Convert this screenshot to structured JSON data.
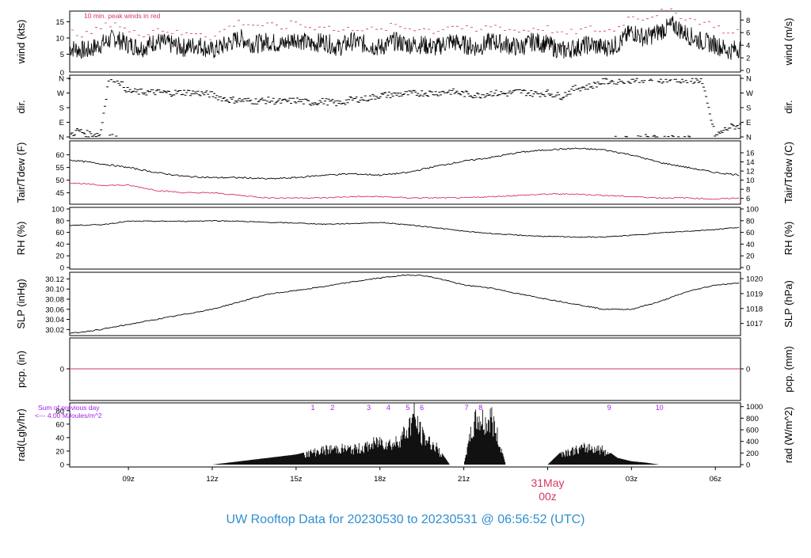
{
  "title": "UW Rooftop Data for 20230530  to  20230531 @ 06:56:52  (UTC)",
  "colors": {
    "accent_red": "#d6375c",
    "purple": "#a020f0",
    "title_blue": "#2e8fd1",
    "ink": "#000000"
  },
  "x_ticks": [
    "09z",
    "12z",
    "15z",
    "18z",
    "21z",
    "03z",
    "06z"
  ],
  "date_label": {
    "day": "31May",
    "hour": "00z"
  },
  "panels": {
    "wind": {
      "ylabel_left": "wind (kts)",
      "ylabel_right": "wind (m/s)",
      "note": "10 min. peak winds in red",
      "left_ticks": [
        "5",
        "10",
        "15"
      ],
      "left_zero": "0",
      "right_ticks": [
        "0",
        "2",
        "4",
        "6",
        "8"
      ]
    },
    "dir": {
      "ylabel_left": "dir.",
      "ylabel_right": "dir.",
      "ticks": [
        "N",
        "E",
        "S",
        "W",
        "N"
      ]
    },
    "temp": {
      "ylabel_left": "Tair/Tdew (F)",
      "ylabel_right": "Tair/Tdew (C)",
      "left_ticks": [
        "45",
        "50",
        "55",
        "60"
      ],
      "right_ticks": [
        "6",
        "8",
        "10",
        "12",
        "14",
        "16"
      ]
    },
    "rh": {
      "ylabel_left": "RH (%)",
      "ylabel_right": "RH (%)",
      "ticks": [
        "0",
        "20",
        "40",
        "60",
        "80",
        "100"
      ]
    },
    "slp": {
      "ylabel_left": "SLP (inHg)",
      "ylabel_right": "SLP (hPa)",
      "left_ticks": [
        "30.02",
        "30.04",
        "30.06",
        "30.08",
        "30.10",
        "30.12"
      ],
      "right_ticks": [
        "1017",
        "1018",
        "1019",
        "1020"
      ]
    },
    "pcp": {
      "ylabel_left": "pcp. (in)",
      "ylabel_right": "pcp. (mm)",
      "left_tick": "0",
      "right_tick": "0"
    },
    "rad": {
      "ylabel_left": "rad(Lgly/hr)",
      "ylabel_right": "rad (W/m^2)",
      "left_ticks": [
        "0",
        "20",
        "40",
        "60",
        "80"
      ],
      "right_ticks": [
        "0",
        "200",
        "400",
        "600",
        "800",
        "1000"
      ],
      "sum_label": "Sum of previous day",
      "sum_value": "<--- 4.00 MJoules/m^2",
      "markers": [
        "1",
        "2",
        "3",
        "4",
        "5",
        "6",
        "7",
        "8",
        "9",
        "10"
      ]
    }
  },
  "chart_data": {
    "type": "line",
    "x_range_hours_utc": [
      6.9,
      30.9
    ],
    "wind": {
      "x": [
        6.9,
        7.5,
        8.0,
        8.5,
        9.0,
        9.5,
        10.0,
        10.5,
        11.0,
        11.5,
        12.0,
        12.5,
        13.0,
        13.5,
        14.0,
        14.5,
        15.0,
        15.5,
        16.0,
        16.5,
        17.0,
        17.5,
        18.0,
        18.5,
        19.0,
        19.5,
        20.0,
        20.5,
        21.0,
        21.5,
        22.0,
        22.5,
        23.0,
        23.5,
        24.0,
        24.5,
        25.0,
        25.5,
        26.0,
        26.5,
        27.0,
        27.5,
        28.0,
        28.5,
        29.0,
        29.5,
        30.0,
        30.5,
        30.9
      ],
      "speed_kts": [
        7,
        6,
        8,
        10,
        8,
        7,
        9,
        8,
        7,
        8,
        6,
        8,
        10,
        8,
        9,
        8,
        10,
        8,
        9,
        7,
        9,
        8,
        7,
        9,
        8,
        8,
        7,
        9,
        8,
        7,
        9,
        8,
        7,
        9,
        8,
        6,
        7,
        8,
        7,
        8,
        12,
        10,
        12,
        14,
        11,
        9,
        8,
        6,
        7
      ],
      "gust_kts": [
        12,
        11,
        13,
        15,
        12,
        11,
        13,
        12,
        11,
        12,
        10,
        13,
        15,
        14,
        14,
        13,
        15,
        13,
        14,
        12,
        13,
        13,
        12,
        14,
        13,
        13,
        12,
        14,
        13,
        12,
        14,
        13,
        12,
        13,
        13,
        11,
        12,
        13,
        12,
        13,
        17,
        16,
        18,
        18,
        16,
        15,
        14,
        11,
        12
      ]
    },
    "direction": {
      "x": [
        6.9,
        7.2,
        7.5,
        8.0,
        8.3,
        8.6,
        9.0,
        9.5,
        10.0,
        10.5,
        11.0,
        11.5,
        12.0,
        12.5,
        13.0,
        13.5,
        14.0,
        14.5,
        15.0,
        15.5,
        16.0,
        16.5,
        17.0,
        17.5,
        18.0,
        18.5,
        19.0,
        19.5,
        20.0,
        20.5,
        21.0,
        21.5,
        22.0,
        22.5,
        23.0,
        23.5,
        24.0,
        24.5,
        25.0,
        25.5,
        26.0,
        26.5,
        27.0,
        27.5,
        28.0,
        28.5,
        29.0,
        29.5,
        30.0,
        30.5,
        30.9
      ],
      "deg": [
        10,
        40,
        20,
        15,
        360,
        355,
        280,
        275,
        275,
        270,
        275,
        270,
        260,
        230,
        225,
        220,
        225,
        215,
        225,
        210,
        220,
        205,
        230,
        235,
        255,
        260,
        265,
        270,
        270,
        280,
        265,
        255,
        270,
        265,
        280,
        265,
        270,
        250,
        300,
        310,
        340,
        345,
        350,
        355,
        350,
        355,
        345,
        350,
        5,
        60,
        70
      ]
    },
    "temperature_F": {
      "x": [
        6.9,
        8.0,
        9.0,
        10.0,
        11.0,
        12.0,
        13.0,
        14.0,
        15.0,
        16.0,
        17.0,
        18.0,
        19.0,
        20.0,
        21.0,
        22.0,
        23.0,
        24.0,
        25.0,
        26.0,
        27.0,
        28.0,
        29.0,
        30.0,
        30.9
      ],
      "tair": [
        58,
        56.5,
        55,
        53,
        51.5,
        51,
        51,
        50.5,
        51,
        52,
        52.5,
        52,
        53,
        55.5,
        57.5,
        59,
        61,
        62,
        62.5,
        62,
        60,
        57,
        55,
        53,
        52
      ],
      "tdew": [
        49,
        48,
        48,
        46,
        45,
        45,
        44,
        43,
        43,
        43,
        43.5,
        43.5,
        43,
        43,
        43,
        43.5,
        44,
        44.5,
        44.5,
        44,
        43.5,
        43,
        43,
        42.5,
        43
      ]
    },
    "rh_pct": {
      "x": [
        6.9,
        8.0,
        9.0,
        10.0,
        11.0,
        12.0,
        13.0,
        14.0,
        15.0,
        16.0,
        17.0,
        18.0,
        19.0,
        20.0,
        21.0,
        22.0,
        23.0,
        24.0,
        25.0,
        26.0,
        27.0,
        28.0,
        29.0,
        30.0,
        30.9
      ],
      "values": [
        72,
        73,
        79,
        79,
        79,
        80,
        79,
        77,
        76,
        74,
        75,
        77,
        73,
        68,
        62,
        58,
        55,
        53,
        52,
        52,
        55,
        59,
        62,
        65,
        69
      ]
    },
    "slp_inHg": {
      "x": [
        6.9,
        8.0,
        9.0,
        10.0,
        11.0,
        12.0,
        13.0,
        14.0,
        15.0,
        16.0,
        17.0,
        18.0,
        19.0,
        19.5,
        20.0,
        21.0,
        22.0,
        23.0,
        24.0,
        25.0,
        26.0,
        27.0,
        28.0,
        29.0,
        30.0,
        30.9
      ],
      "values": [
        30.012,
        30.02,
        30.03,
        30.04,
        30.05,
        30.06,
        30.075,
        30.09,
        30.097,
        30.105,
        30.114,
        30.122,
        30.128,
        30.127,
        30.122,
        30.108,
        30.102,
        30.09,
        30.08,
        30.07,
        30.06,
        30.06,
        30.075,
        30.095,
        30.108,
        30.112
      ]
    },
    "pcp_in": {
      "x": [
        6.9,
        30.9
      ],
      "values": [
        0,
        0
      ]
    },
    "radiation_lgly_hr": {
      "x": [
        12.0,
        13.0,
        14.0,
        15.0,
        15.5,
        16.0,
        16.5,
        17.0,
        17.5,
        18.0,
        18.5,
        19.0,
        19.2,
        19.5,
        20.0,
        20.5,
        21.0,
        21.3,
        21.5,
        21.8,
        22.0,
        22.5,
        23.0,
        23.5,
        24.0,
        24.5,
        25.0,
        25.5,
        26.0,
        26.5,
        27.0,
        27.5,
        28.0
      ],
      "values": [
        0,
        5,
        10,
        15,
        20,
        25,
        28,
        26,
        30,
        40,
        35,
        60,
        85,
        50,
        30,
        0,
        0,
        60,
        80,
        70,
        80,
        0,
        0,
        0,
        0,
        20,
        25,
        30,
        25,
        10,
        5,
        3,
        0
      ]
    }
  }
}
